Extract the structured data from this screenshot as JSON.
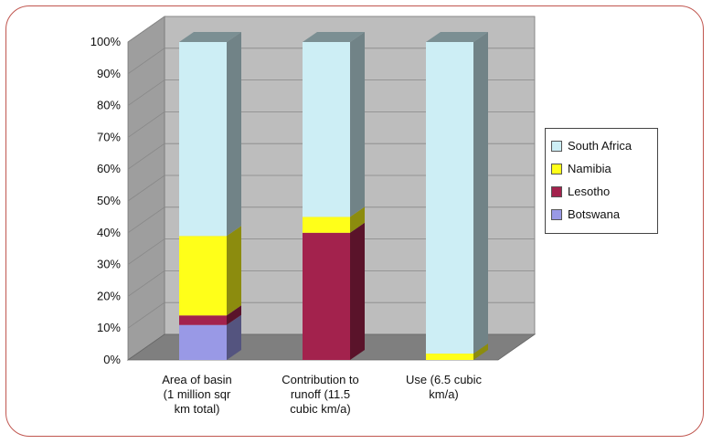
{
  "chart_data": {
    "type": "bar",
    "stacked": true,
    "three_d": true,
    "categories": [
      [
        "Area of basin",
        "(1 million sqr",
        "km total)"
      ],
      [
        "Contribution to",
        "runoff (11.5",
        "cubic km/a)"
      ],
      [
        "Use (6.5 cubic",
        "km/a)"
      ]
    ],
    "series": [
      {
        "name": "Botswana",
        "color": "#9999e6",
        "values": [
          11,
          0,
          0
        ]
      },
      {
        "name": "Lesotho",
        "color": "#a3224d",
        "values": [
          3,
          40,
          0
        ]
      },
      {
        "name": "Namibia",
        "color": "#ffff19",
        "values": [
          25,
          5,
          2
        ]
      },
      {
        "name": "South Africa",
        "color": "#cdeef5",
        "values": [
          61,
          55,
          98
        ]
      }
    ],
    "yticks": [
      "0%",
      "10%",
      "20%",
      "30%",
      "40%",
      "50%",
      "60%",
      "70%",
      "80%",
      "90%",
      "100%"
    ],
    "ylim": [
      0,
      100
    ],
    "grid": true,
    "legend_position": "right",
    "legend_order": [
      "South Africa",
      "Namibia",
      "Lesotho",
      "Botswana"
    ]
  }
}
